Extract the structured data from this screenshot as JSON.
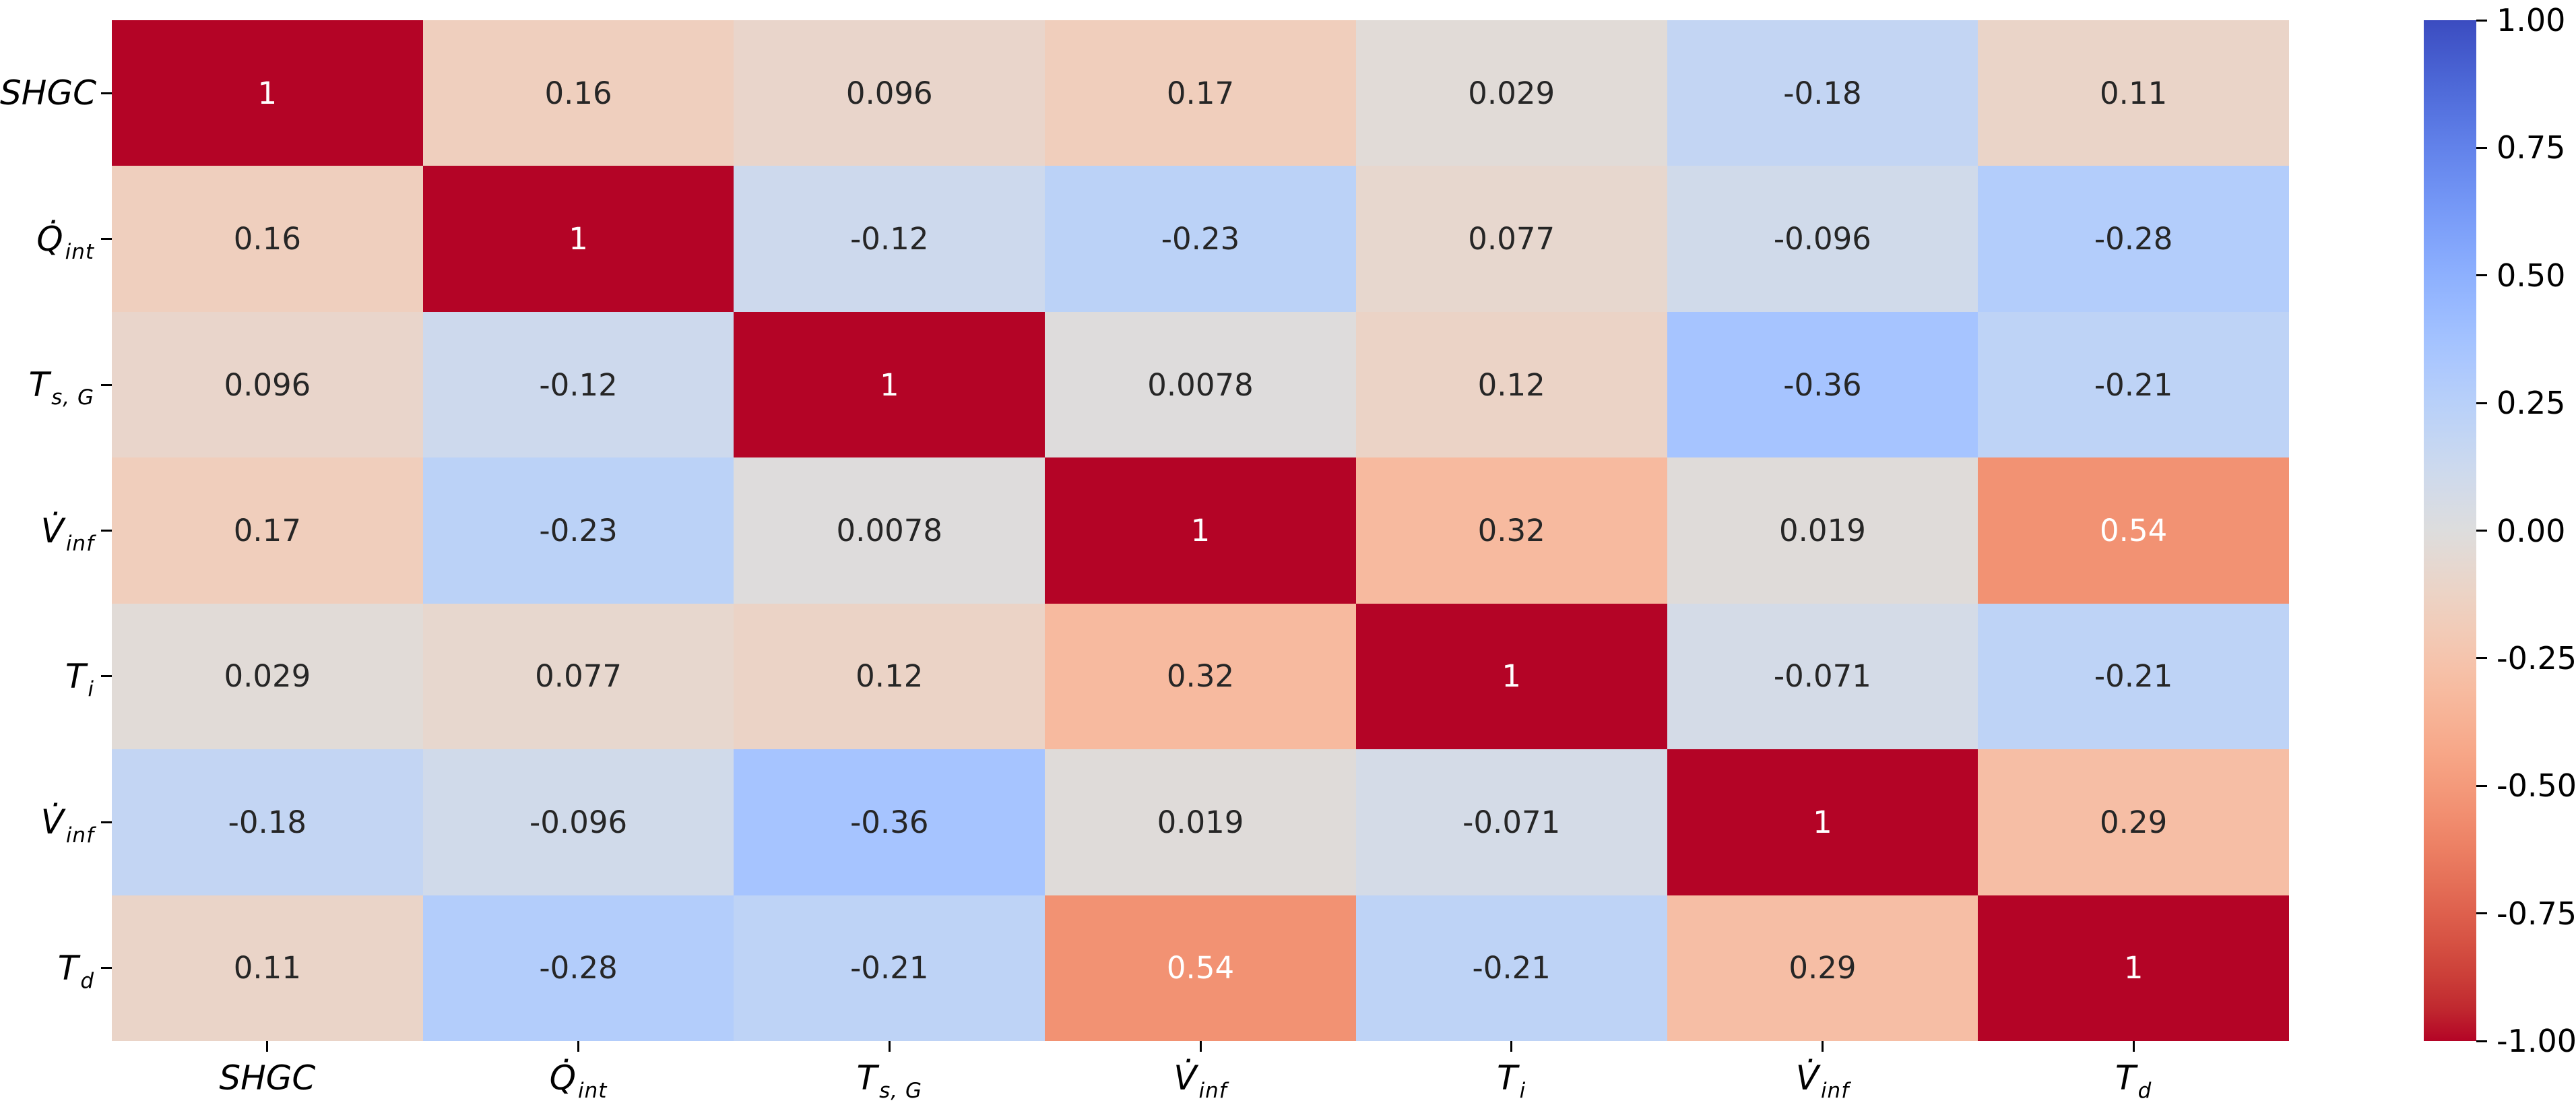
{
  "chart_data": {
    "type": "heatmap",
    "title": "",
    "colormap": "coolwarm",
    "vmin": -1,
    "vmax": 1,
    "grid": false,
    "legend_position": "right-colorbar",
    "variables": [
      {
        "label": "SHGC",
        "base": "SHGC",
        "dot": false,
        "sub": ""
      },
      {
        "label": "Q̇_int",
        "base": "Q",
        "dot": true,
        "sub": "int"
      },
      {
        "label": "T_s,G",
        "base": "T",
        "dot": false,
        "sub": "s, G"
      },
      {
        "label": "V̇_inf",
        "base": "V",
        "dot": true,
        "sub": "inf"
      },
      {
        "label": "T_i",
        "base": "T",
        "dot": false,
        "sub": "i"
      },
      {
        "label": "V̇_inf",
        "base": "V",
        "dot": true,
        "sub": "inf"
      },
      {
        "label": "T_d",
        "base": "T",
        "dot": false,
        "sub": "d"
      }
    ],
    "matrix": [
      [
        "1",
        "0.16",
        "0.096",
        "0.17",
        "0.029",
        "-0.18",
        "0.11"
      ],
      [
        "0.16",
        "1",
        "-0.12",
        "-0.23",
        "0.077",
        "-0.096",
        "-0.28"
      ],
      [
        "0.096",
        "-0.12",
        "1",
        "0.0078",
        "0.12",
        "-0.36",
        "-0.21"
      ],
      [
        "0.17",
        "-0.23",
        "0.0078",
        "1",
        "0.32",
        "0.019",
        "0.54"
      ],
      [
        "0.029",
        "0.077",
        "0.12",
        "0.32",
        "1",
        "-0.071",
        "-0.21"
      ],
      [
        "-0.18",
        "-0.096",
        "-0.36",
        "0.019",
        "-0.071",
        "1",
        "0.29"
      ],
      [
        "0.11",
        "-0.28",
        "-0.21",
        "0.54",
        "-0.21",
        "0.29",
        "1"
      ]
    ],
    "colorbar_ticks": [
      "1.00",
      "0.75",
      "0.50",
      "0.25",
      "0.00",
      "-0.25",
      "-0.50",
      "-0.75",
      "-1.00"
    ]
  },
  "colors": {
    "cmap_max": "#b40426",
    "cmap_mid": "#dddddd",
    "cmap_min": "#3b4cc0",
    "annotation_dark": "#262626",
    "annotation_light": "#ffffff",
    "axis_text": "#000000",
    "background": "#ffffff"
  }
}
